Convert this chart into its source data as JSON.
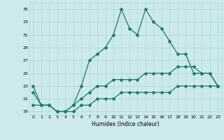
{
  "title": "",
  "xlabel": "Humidex (Indice chaleur)",
  "ylabel": "",
  "background_color": "#cce9ec",
  "line_color": "#1a7a6e",
  "grid_color": "#aed4d8",
  "x": [
    0,
    1,
    2,
    3,
    4,
    5,
    6,
    7,
    8,
    9,
    10,
    11,
    12,
    13,
    14,
    15,
    16,
    17,
    18,
    19,
    20,
    21,
    22,
    23
  ],
  "line1": [
    23,
    20,
    20,
    19,
    19,
    20,
    23,
    27,
    28,
    29,
    31,
    35,
    32,
    31,
    35,
    33,
    32,
    30,
    28,
    28,
    25,
    25,
    25,
    23
  ],
  "line2": [
    22,
    20,
    20,
    19,
    19,
    20,
    21,
    22,
    23,
    23,
    24,
    24,
    24,
    24,
    25,
    25,
    25,
    25,
    26,
    26,
    26,
    25,
    25,
    23
  ],
  "line3": [
    20,
    20,
    20,
    19,
    19,
    19,
    20,
    20,
    21,
    21,
    21,
    22,
    22,
    22,
    22,
    22,
    22,
    22,
    23,
    23,
    23,
    23,
    23,
    23
  ],
  "ylim": [
    18.5,
    36
  ],
  "xlim": [
    -0.5,
    23.5
  ],
  "yticks": [
    19,
    21,
    23,
    25,
    27,
    29,
    31,
    33,
    35
  ],
  "xticks": [
    0,
    1,
    2,
    3,
    4,
    5,
    6,
    7,
    8,
    9,
    10,
    11,
    12,
    13,
    14,
    15,
    16,
    17,
    18,
    19,
    20,
    21,
    22,
    23
  ],
  "marker": "*",
  "markersize": 3,
  "linewidth": 0.9
}
